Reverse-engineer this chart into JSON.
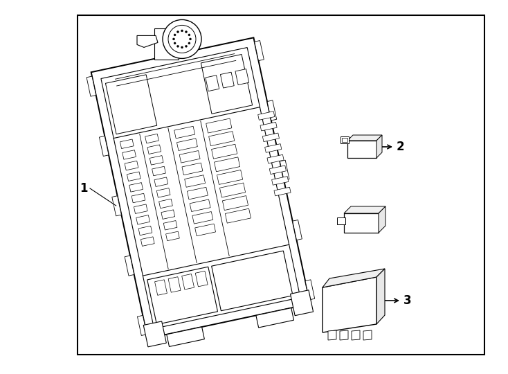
{
  "background_color": "#ffffff",
  "line_color": "#000000",
  "text_color": "#000000",
  "label1": "1",
  "label2": "2",
  "label3": "3",
  "fig_width": 7.34,
  "fig_height": 5.4,
  "dpi": 100,
  "rotation_deg": -12
}
